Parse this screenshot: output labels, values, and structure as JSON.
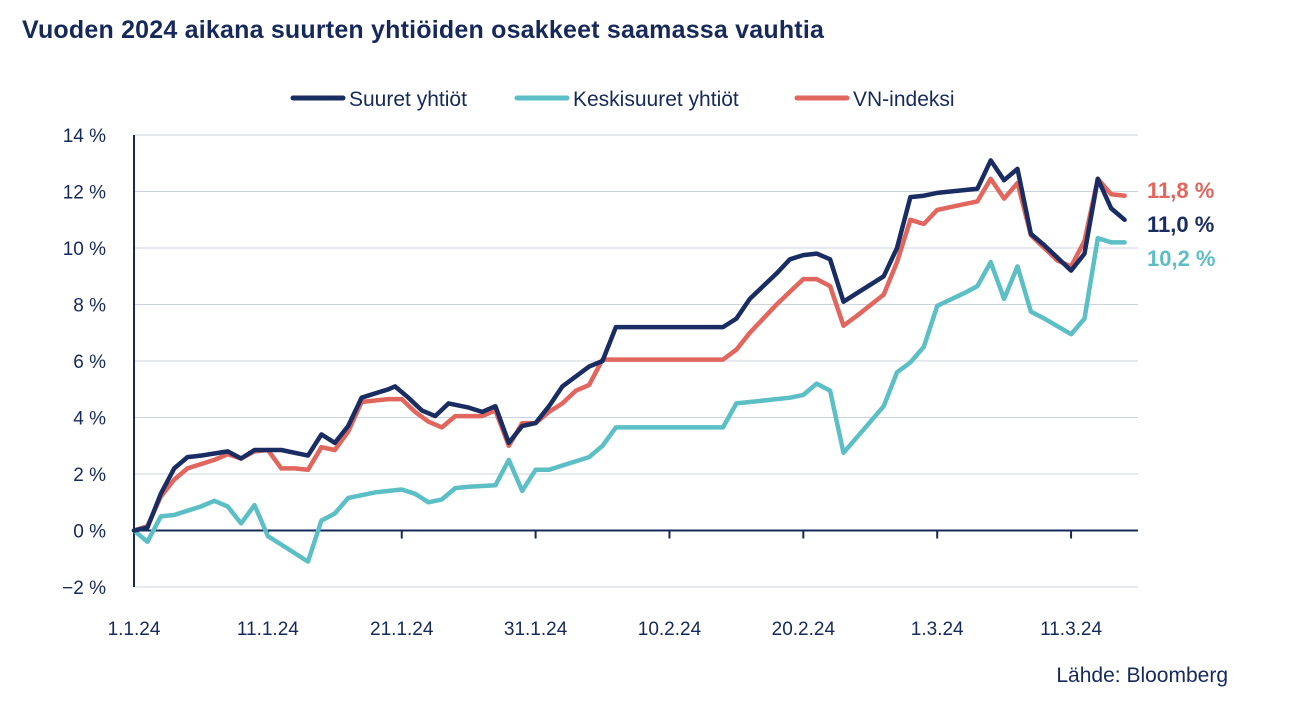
{
  "title": "Vuoden 2024 aikana suurten yhtiöiden osakkeet saamassa vauhtia",
  "source": "Lähde: Bloomberg",
  "chart_data": {
    "type": "line",
    "title": "Vuoden 2024 aikana suurten yhtiöiden osakkeet saamassa vauhtia",
    "xlabel": "",
    "ylabel": "",
    "ylim": [
      -2,
      14
    ],
    "xlim": [
      0,
      75
    ],
    "grid": true,
    "legend_position": "top-center",
    "y_ticks": [
      {
        "value": 14,
        "label": "14 %"
      },
      {
        "value": 12,
        "label": "12 %"
      },
      {
        "value": 10,
        "label": "10 %"
      },
      {
        "value": 8,
        "label": "8 %"
      },
      {
        "value": 6,
        "label": "6 %"
      },
      {
        "value": 4,
        "label": "4 %"
      },
      {
        "value": 2,
        "label": "2 %"
      },
      {
        "value": 0,
        "label": "0 %"
      },
      {
        "value": -2,
        "label": "−2 %"
      }
    ],
    "x_ticks": [
      {
        "value": 0,
        "label": "1.1.24"
      },
      {
        "value": 10,
        "label": "11.1.24"
      },
      {
        "value": 20,
        "label": "21.1.24"
      },
      {
        "value": 30,
        "label": "31.1.24"
      },
      {
        "value": 40,
        "label": "10.2.24"
      },
      {
        "value": 50,
        "label": "20.2.24"
      },
      {
        "value": 60,
        "label": "1.3.24"
      },
      {
        "value": 70,
        "label": "11.3.24"
      }
    ],
    "series": [
      {
        "name": "Suuret yhtiöt",
        "color": "#1a2d63",
        "end_label": "11,0 %",
        "points": [
          [
            0,
            0
          ],
          [
            1,
            0.1
          ],
          [
            2,
            1.3
          ],
          [
            3,
            2.2
          ],
          [
            4,
            2.6
          ],
          [
            5,
            2.65
          ],
          [
            7,
            2.8
          ],
          [
            8,
            2.55
          ],
          [
            9,
            2.85
          ],
          [
            10,
            2.85
          ],
          [
            11,
            2.85
          ],
          [
            13,
            2.65
          ],
          [
            14,
            3.4
          ],
          [
            15,
            3.1
          ],
          [
            16,
            3.7
          ],
          [
            17,
            4.7
          ],
          [
            19,
            5.0
          ],
          [
            19.5,
            5.1
          ],
          [
            20.5,
            4.7
          ],
          [
            21.5,
            4.25
          ],
          [
            22.5,
            4.05
          ],
          [
            23.5,
            4.5
          ],
          [
            25,
            4.35
          ],
          [
            26,
            4.2
          ],
          [
            27,
            4.4
          ],
          [
            28,
            3.1
          ],
          [
            29,
            3.7
          ],
          [
            30,
            3.8
          ],
          [
            31,
            4.4
          ],
          [
            32,
            5.1
          ],
          [
            34,
            5.8
          ],
          [
            35,
            6.0
          ],
          [
            36,
            7.2
          ],
          [
            37,
            7.2
          ],
          [
            39,
            7.2
          ],
          [
            44,
            7.2
          ],
          [
            45,
            7.5
          ],
          [
            46,
            8.2
          ],
          [
            48,
            9.1
          ],
          [
            49,
            9.6
          ],
          [
            50,
            9.75
          ],
          [
            51,
            9.8
          ],
          [
            52,
            9.6
          ],
          [
            53,
            8.1
          ],
          [
            54,
            8.4
          ],
          [
            56,
            9.0
          ],
          [
            57,
            10.0
          ],
          [
            58,
            11.8
          ],
          [
            59,
            11.85
          ],
          [
            60,
            11.95
          ],
          [
            62,
            12.05
          ],
          [
            63,
            12.1
          ],
          [
            64,
            13.1
          ],
          [
            65,
            12.4
          ],
          [
            66,
            12.8
          ],
          [
            67,
            10.5
          ],
          [
            68,
            10.1
          ],
          [
            70,
            9.2
          ],
          [
            71,
            9.8
          ],
          [
            72,
            12.45
          ],
          [
            73,
            11.4
          ],
          [
            74,
            11.0
          ]
        ]
      },
      {
        "name": "Keskisuuret yhtiöt",
        "color": "#5bbfc5",
        "end_label": "10,2 %",
        "points": [
          [
            0,
            0
          ],
          [
            1,
            -0.4
          ],
          [
            2,
            0.5
          ],
          [
            3,
            0.55
          ],
          [
            4,
            0.7
          ],
          [
            5,
            0.85
          ],
          [
            6,
            1.05
          ],
          [
            7,
            0.85
          ],
          [
            8,
            0.25
          ],
          [
            9,
            0.9
          ],
          [
            10,
            -0.2
          ],
          [
            11,
            -0.5
          ],
          [
            13,
            -1.1
          ],
          [
            14,
            0.35
          ],
          [
            15,
            0.6
          ],
          [
            16,
            1.15
          ],
          [
            17,
            1.25
          ],
          [
            18,
            1.35
          ],
          [
            20,
            1.45
          ],
          [
            21,
            1.3
          ],
          [
            22,
            1.0
          ],
          [
            23,
            1.1
          ],
          [
            24,
            1.5
          ],
          [
            25,
            1.55
          ],
          [
            27,
            1.6
          ],
          [
            28,
            2.5
          ],
          [
            29,
            1.4
          ],
          [
            30,
            2.15
          ],
          [
            31,
            2.15
          ],
          [
            32,
            2.3
          ],
          [
            34,
            2.6
          ],
          [
            35,
            3.0
          ],
          [
            36,
            3.65
          ],
          [
            38,
            3.65
          ],
          [
            44,
            3.65
          ],
          [
            45,
            4.5
          ],
          [
            46,
            4.55
          ],
          [
            49,
            4.7
          ],
          [
            50,
            4.8
          ],
          [
            51,
            5.2
          ],
          [
            52,
            4.95
          ],
          [
            53,
            2.75
          ],
          [
            54,
            3.3
          ],
          [
            56,
            4.4
          ],
          [
            57,
            5.6
          ],
          [
            58,
            5.95
          ],
          [
            59,
            6.5
          ],
          [
            60,
            7.95
          ],
          [
            62,
            8.4
          ],
          [
            63,
            8.65
          ],
          [
            64,
            9.5
          ],
          [
            65,
            8.2
          ],
          [
            66,
            9.35
          ],
          [
            67,
            7.75
          ],
          [
            68,
            7.5
          ],
          [
            70,
            6.95
          ],
          [
            71,
            7.5
          ],
          [
            72,
            10.35
          ],
          [
            73,
            10.2
          ],
          [
            74,
            10.2
          ]
        ]
      },
      {
        "name": "VN-indeksi",
        "color": "#e0665e",
        "end_label": "11,8 %",
        "points": [
          [
            0,
            0
          ],
          [
            1,
            0.15
          ],
          [
            2,
            1.2
          ],
          [
            3,
            1.8
          ],
          [
            4,
            2.2
          ],
          [
            6,
            2.5
          ],
          [
            7,
            2.7
          ],
          [
            8,
            2.55
          ],
          [
            9,
            2.8
          ],
          [
            10,
            2.85
          ],
          [
            11,
            2.2
          ],
          [
            12,
            2.2
          ],
          [
            13,
            2.15
          ],
          [
            14,
            2.95
          ],
          [
            15,
            2.85
          ],
          [
            16,
            3.5
          ],
          [
            17,
            4.55
          ],
          [
            19,
            4.65
          ],
          [
            20,
            4.65
          ],
          [
            21,
            4.2
          ],
          [
            22,
            3.85
          ],
          [
            23,
            3.65
          ],
          [
            24,
            4.05
          ],
          [
            26,
            4.05
          ],
          [
            27,
            4.25
          ],
          [
            28,
            3.0
          ],
          [
            29,
            3.8
          ],
          [
            30,
            3.8
          ],
          [
            31,
            4.2
          ],
          [
            32,
            4.5
          ],
          [
            33,
            4.95
          ],
          [
            34,
            5.15
          ],
          [
            35,
            6.05
          ],
          [
            37,
            6.05
          ],
          [
            44,
            6.05
          ],
          [
            45,
            6.4
          ],
          [
            46,
            7.0
          ],
          [
            48,
            8.0
          ],
          [
            49,
            8.45
          ],
          [
            50,
            8.9
          ],
          [
            51,
            8.9
          ],
          [
            52,
            8.65
          ],
          [
            53,
            7.25
          ],
          [
            54,
            7.6
          ],
          [
            56,
            8.35
          ],
          [
            57,
            9.5
          ],
          [
            58,
            11.0
          ],
          [
            59,
            10.85
          ],
          [
            60,
            11.35
          ],
          [
            62,
            11.55
          ],
          [
            63,
            11.65
          ],
          [
            64,
            12.45
          ],
          [
            65,
            11.75
          ],
          [
            66,
            12.3
          ],
          [
            67,
            10.45
          ],
          [
            68,
            10.0
          ],
          [
            69,
            9.55
          ],
          [
            70,
            9.35
          ],
          [
            71,
            10.25
          ],
          [
            72,
            12.45
          ],
          [
            73,
            11.9
          ],
          [
            74,
            11.85
          ]
        ]
      }
    ]
  }
}
